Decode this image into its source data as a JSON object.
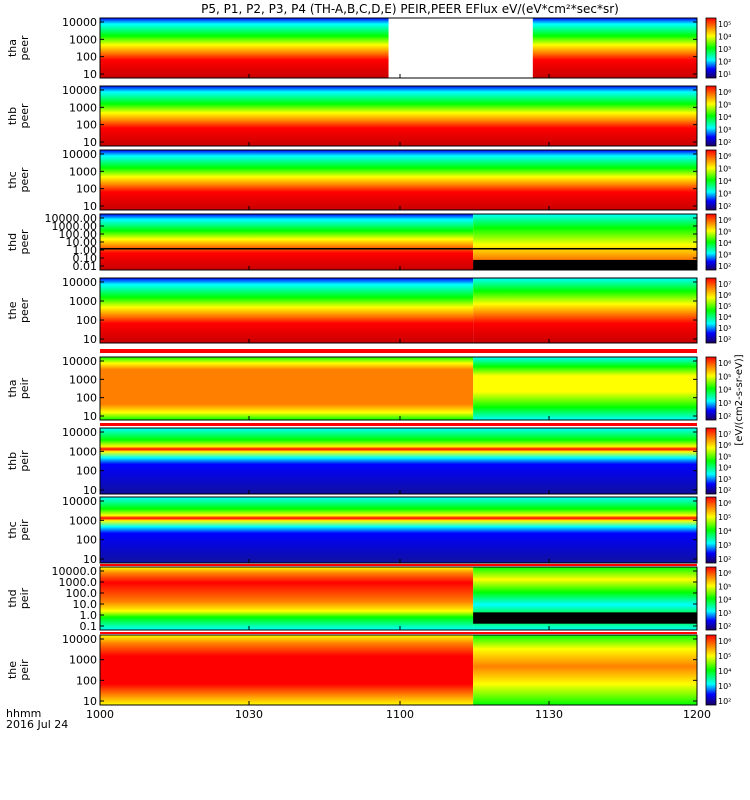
{
  "title": "P5, P1, P2, P3, P4 (TH-A,B,C,D,E) PEIR,PEER EFlux eV/(eV*cm²*sec*sr)",
  "footer": {
    "time_label": "hhmm",
    "date_label": "2016 Jul 24"
  },
  "colorbar_label": "[eV/(cm2-s-sr-eV)]",
  "colors": {
    "blue": "#0000ff",
    "cyan": "#00ffff",
    "green": "#00ff00",
    "yellow": "#ffff00",
    "orange": "#ff8000",
    "red": "#ff0000",
    "dark_red": "#c80000",
    "black": "#000000",
    "magenta": "#ff00ff"
  },
  "chart_data": {
    "type": "heatmap",
    "x": {
      "ticks": [
        "1000",
        "1030",
        "1100",
        "1130",
        "1200"
      ],
      "range": [
        "1000",
        "1200"
      ]
    },
    "panels": [
      {
        "probe": "tha",
        "species": "peer",
        "y_label": [
          "tha",
          "peer"
        ],
        "y_ticks": [
          "10000",
          "1000",
          "100",
          "10"
        ],
        "cbar_ticks": [
          "10⁵",
          "10⁴",
          "10³",
          "10²",
          "10¹"
        ],
        "data_gap": [
          "1058",
          "1127"
        ]
      },
      {
        "probe": "thb",
        "species": "peer",
        "y_label": [
          "thb",
          "peer"
        ],
        "y_ticks": [
          "10000",
          "1000",
          "100",
          "10"
        ],
        "cbar_ticks": [
          "10⁶",
          "10⁵",
          "10⁴",
          "10³",
          "10²"
        ]
      },
      {
        "probe": "thc",
        "species": "peer",
        "y_label": [
          "thc",
          "peer"
        ],
        "y_ticks": [
          "10000",
          "1000",
          "100",
          "10"
        ],
        "cbar_ticks": [
          "10⁶",
          "10⁵",
          "10⁴",
          "10³",
          "10²"
        ]
      },
      {
        "probe": "thd",
        "species": "peer",
        "y_label": [
          "thd",
          "peer"
        ],
        "y_ticks": [
          "10000.00",
          "1000.00",
          "100.00",
          "10.00",
          "1.00",
          "0.10",
          "0.01"
        ],
        "cbar_ticks": [
          "10⁶",
          "10⁵",
          "10⁴",
          "10³",
          "10²"
        ],
        "transition": "1115"
      },
      {
        "probe": "the",
        "species": "peer",
        "y_label": [
          "the",
          "peer"
        ],
        "y_ticks": [
          "10000",
          "1000",
          "100",
          "10"
        ],
        "cbar_ticks": [
          "10⁷",
          "10⁶",
          "10⁵",
          "10⁴",
          "10³",
          "10²"
        ],
        "transition": "1115"
      },
      {
        "probe": "tha",
        "species": "peir",
        "y_label": [
          "tha",
          "peir"
        ],
        "y_ticks": [
          "10000",
          "1000",
          "100",
          "10"
        ],
        "cbar_ticks": [
          "10⁶",
          "10⁵",
          "10⁴",
          "10³",
          "10²"
        ],
        "transition": "1115"
      },
      {
        "probe": "thb",
        "species": "peir",
        "y_label": [
          "thb",
          "peir"
        ],
        "y_ticks": [
          "10000",
          "1000",
          "100",
          "10"
        ],
        "cbar_ticks": [
          "10⁷",
          "10⁶",
          "10⁵",
          "10⁴",
          "10³",
          "10²"
        ]
      },
      {
        "probe": "thc",
        "species": "peir",
        "y_label": [
          "thc",
          "peir"
        ],
        "y_ticks": [
          "10000",
          "1000",
          "100",
          "10"
        ],
        "cbar_ticks": [
          "10⁶",
          "10⁵",
          "10⁴",
          "10³",
          "10²"
        ]
      },
      {
        "probe": "thd",
        "species": "peir",
        "y_label": [
          "thd",
          "peir"
        ],
        "y_ticks": [
          "10000.0",
          "1000.0",
          "100.0",
          "10.0",
          "1.0",
          "0.1"
        ],
        "cbar_ticks": [
          "10⁶",
          "10⁵",
          "10⁴",
          "10³",
          "10²"
        ],
        "transition": "1115"
      },
      {
        "probe": "the",
        "species": "peir",
        "y_label": [
          "the",
          "peir"
        ],
        "y_ticks": [
          "10000",
          "1000",
          "100",
          "10"
        ],
        "cbar_ticks": [
          "10⁶",
          "10⁵",
          "10⁴",
          "10³",
          "10²"
        ],
        "transition": "1115"
      }
    ]
  }
}
